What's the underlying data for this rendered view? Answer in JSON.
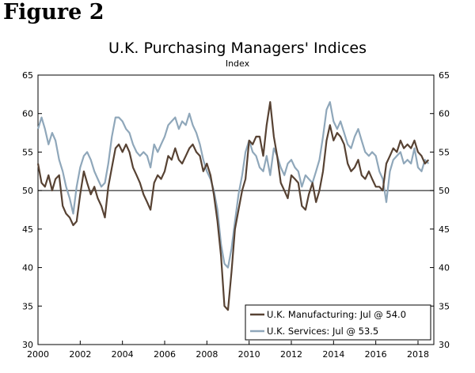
{
  "figure_label": "Figure 2",
  "colors": {
    "manufacturing": "#574233",
    "services": "#8fa7ba",
    "axis": "#000000"
  },
  "chart_data": {
    "type": "line",
    "title": "U.K. Purchasing Managers' Indices",
    "subtitle": "Index",
    "xlabel": "",
    "ylabel": "",
    "xlim": [
      2000,
      2018.75
    ],
    "ylim": [
      30,
      65
    ],
    "reference_line": 50,
    "x_ticks": [
      "2000",
      "2002",
      "2004",
      "2006",
      "2008",
      "2010",
      "2012",
      "2014",
      "2016",
      "2018"
    ],
    "x_tick_values": [
      2000,
      2002,
      2004,
      2006,
      2008,
      2010,
      2012,
      2014,
      2016,
      2018
    ],
    "y_ticks_left": [
      "30",
      "35",
      "40",
      "45",
      "50",
      "55",
      "60",
      "65"
    ],
    "y_ticks_right": [
      "30",
      "35",
      "40",
      "45",
      "50",
      "55",
      "60",
      "65"
    ],
    "y_tick_values": [
      30,
      35,
      40,
      45,
      50,
      55,
      60,
      65
    ],
    "legend": {
      "placement": "bottom-right",
      "entries": [
        "U.K. Manufacturing: Jul @ 54.0",
        "U.K. Services: Jul @ 53.5"
      ]
    },
    "series": [
      {
        "name": "U.K. Manufacturing: Jul @ 54.0",
        "x": [
          2000.0,
          2000.17,
          2000.33,
          2000.5,
          2000.67,
          2000.83,
          2001.0,
          2001.17,
          2001.33,
          2001.5,
          2001.67,
          2001.83,
          2002.0,
          2002.17,
          2002.33,
          2002.5,
          2002.67,
          2002.83,
          2003.0,
          2003.17,
          2003.33,
          2003.5,
          2003.67,
          2003.83,
          2004.0,
          2004.17,
          2004.33,
          2004.5,
          2004.67,
          2004.83,
          2005.0,
          2005.17,
          2005.33,
          2005.5,
          2005.67,
          2005.83,
          2006.0,
          2006.17,
          2006.33,
          2006.5,
          2006.67,
          2006.83,
          2007.0,
          2007.17,
          2007.33,
          2007.5,
          2007.67,
          2007.83,
          2008.0,
          2008.17,
          2008.33,
          2008.5,
          2008.67,
          2008.83,
          2009.0,
          2009.17,
          2009.33,
          2009.5,
          2009.67,
          2009.83,
          2010.0,
          2010.17,
          2010.33,
          2010.5,
          2010.67,
          2010.83,
          2011.0,
          2011.17,
          2011.33,
          2011.5,
          2011.67,
          2011.83,
          2012.0,
          2012.17,
          2012.33,
          2012.5,
          2012.67,
          2012.83,
          2013.0,
          2013.17,
          2013.33,
          2013.5,
          2013.67,
          2013.83,
          2014.0,
          2014.17,
          2014.33,
          2014.5,
          2014.67,
          2014.83,
          2015.0,
          2015.17,
          2015.33,
          2015.5,
          2015.67,
          2015.83,
          2016.0,
          2016.17,
          2016.33,
          2016.5,
          2016.67,
          2016.83,
          2017.0,
          2017.17,
          2017.33,
          2017.5,
          2017.67,
          2017.83,
          2018.0,
          2018.17,
          2018.33,
          2018.5
        ],
        "values": [
          53.5,
          51.0,
          50.5,
          52.0,
          50.0,
          51.5,
          52.0,
          48.0,
          47.0,
          46.5,
          45.5,
          46.0,
          49.5,
          52.5,
          51.0,
          49.5,
          50.5,
          49.0,
          48.0,
          46.5,
          50.5,
          53.0,
          55.5,
          56.0,
          55.0,
          56.0,
          55.0,
          53.0,
          52.0,
          51.0,
          49.5,
          48.5,
          47.5,
          51.0,
          52.0,
          51.5,
          52.5,
          54.5,
          54.0,
          55.5,
          54.0,
          53.5,
          54.5,
          55.5,
          56.0,
          55.0,
          54.5,
          52.5,
          53.5,
          52.0,
          49.5,
          46.0,
          41.5,
          35.0,
          34.5,
          39.5,
          45.0,
          47.5,
          50.0,
          51.5,
          56.5,
          56.0,
          57.0,
          57.0,
          54.5,
          58.5,
          61.5,
          57.0,
          54.5,
          51.0,
          50.0,
          49.0,
          52.0,
          51.5,
          51.0,
          48.0,
          47.5,
          49.5,
          51.0,
          48.5,
          50.0,
          52.5,
          56.5,
          58.5,
          56.5,
          57.5,
          57.0,
          56.0,
          53.5,
          52.5,
          53.0,
          54.0,
          52.0,
          51.5,
          52.5,
          51.5,
          50.5,
          50.5,
          50.0,
          53.5,
          54.5,
          55.5,
          55.0,
          56.5,
          55.5,
          56.0,
          55.5,
          56.5,
          55.0,
          54.5,
          53.5,
          54.0
        ]
      },
      {
        "name": "U.K. Services: Jul @ 53.5",
        "x": [
          2000.0,
          2000.17,
          2000.33,
          2000.5,
          2000.67,
          2000.83,
          2001.0,
          2001.17,
          2001.33,
          2001.5,
          2001.67,
          2001.83,
          2002.0,
          2002.17,
          2002.33,
          2002.5,
          2002.67,
          2002.83,
          2003.0,
          2003.17,
          2003.33,
          2003.5,
          2003.67,
          2003.83,
          2004.0,
          2004.17,
          2004.33,
          2004.5,
          2004.67,
          2004.83,
          2005.0,
          2005.17,
          2005.33,
          2005.5,
          2005.67,
          2005.83,
          2006.0,
          2006.17,
          2006.33,
          2006.5,
          2006.67,
          2006.83,
          2007.0,
          2007.17,
          2007.33,
          2007.5,
          2007.67,
          2007.83,
          2008.0,
          2008.17,
          2008.33,
          2008.5,
          2008.67,
          2008.83,
          2009.0,
          2009.17,
          2009.33,
          2009.5,
          2009.67,
          2009.83,
          2010.0,
          2010.17,
          2010.33,
          2010.5,
          2010.67,
          2010.83,
          2011.0,
          2011.17,
          2011.33,
          2011.5,
          2011.67,
          2011.83,
          2012.0,
          2012.17,
          2012.33,
          2012.5,
          2012.67,
          2012.83,
          2013.0,
          2013.17,
          2013.33,
          2013.5,
          2013.67,
          2013.83,
          2014.0,
          2014.17,
          2014.33,
          2014.5,
          2014.67,
          2014.83,
          2015.0,
          2015.17,
          2015.33,
          2015.5,
          2015.67,
          2015.83,
          2016.0,
          2016.17,
          2016.33,
          2016.5,
          2016.67,
          2016.83,
          2017.0,
          2017.17,
          2017.33,
          2017.5,
          2017.67,
          2017.83,
          2018.0,
          2018.17,
          2018.33,
          2018.5
        ],
        "values": [
          58.0,
          59.5,
          58.0,
          56.0,
          57.5,
          56.5,
          54.0,
          52.5,
          50.5,
          49.0,
          47.0,
          50.5,
          53.0,
          54.5,
          55.0,
          54.0,
          52.5,
          51.5,
          50.5,
          51.0,
          53.5,
          57.0,
          59.5,
          59.5,
          59.0,
          58.0,
          57.5,
          56.0,
          55.0,
          54.5,
          55.0,
          54.5,
          53.0,
          56.0,
          55.0,
          56.0,
          57.0,
          58.5,
          59.0,
          59.5,
          58.0,
          59.0,
          58.5,
          60.0,
          58.5,
          57.5,
          56.0,
          54.0,
          52.5,
          51.5,
          50.0,
          47.5,
          43.0,
          40.5,
          40.0,
          42.5,
          46.0,
          49.5,
          52.0,
          55.0,
          56.5,
          55.0,
          54.5,
          53.0,
          52.5,
          54.5,
          52.0,
          55.5,
          54.5,
          53.0,
          52.0,
          53.5,
          54.0,
          53.0,
          52.5,
          50.5,
          52.0,
          51.5,
          51.0,
          52.5,
          54.0,
          57.0,
          60.5,
          61.5,
          59.0,
          58.0,
          59.0,
          57.5,
          56.0,
          55.5,
          57.0,
          58.0,
          56.5,
          55.0,
          54.5,
          55.0,
          54.5,
          52.5,
          51.5,
          48.5,
          52.5,
          54.0,
          54.5,
          55.0,
          53.5,
          54.0,
          53.5,
          55.5,
          53.0,
          52.5,
          54.0,
          53.5
        ]
      }
    ]
  }
}
